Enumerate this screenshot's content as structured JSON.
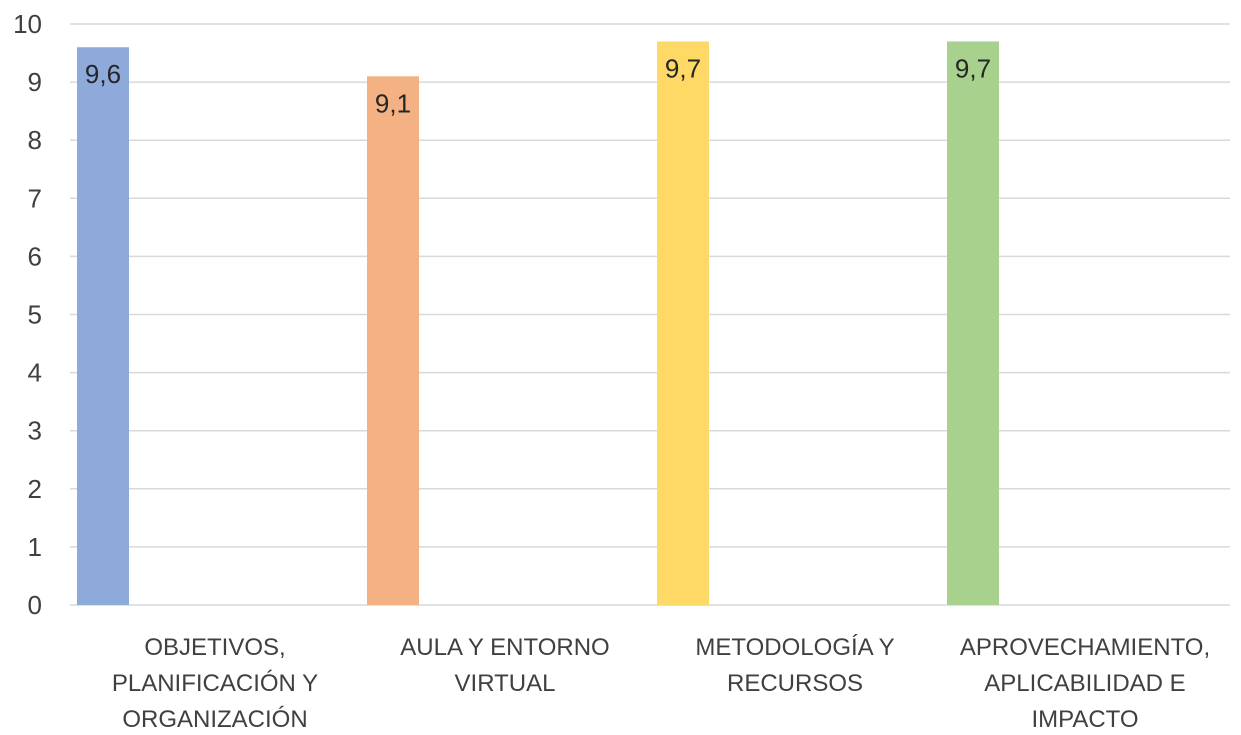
{
  "chart_data": {
    "type": "bar",
    "categories": [
      [
        "OBJETIVOS,",
        "PLANIFICACIÓN Y",
        "ORGANIZACIÓN"
      ],
      [
        "AULA Y ENTORNO",
        "VIRTUAL"
      ],
      [
        "METODOLOGÍA Y",
        "RECURSOS"
      ],
      [
        "APROVECHAMIENTO,",
        "APLICABILIDAD E",
        "IMPACTO"
      ]
    ],
    "values": [
      9.6,
      9.1,
      9.7,
      9.7
    ],
    "data_labels": [
      "9,6",
      "9,1",
      "9,7",
      "9,7"
    ],
    "colors": [
      "#8eaadb",
      "#f4b183",
      "#ffd966",
      "#a9d18e"
    ],
    "title": "",
    "xlabel": "",
    "ylabel": "",
    "ylim": [
      0,
      10
    ],
    "yticks": [
      "0",
      "1",
      "2",
      "3",
      "4",
      "5",
      "6",
      "7",
      "8",
      "9",
      "10"
    ],
    "grid": true,
    "legend": "none"
  }
}
